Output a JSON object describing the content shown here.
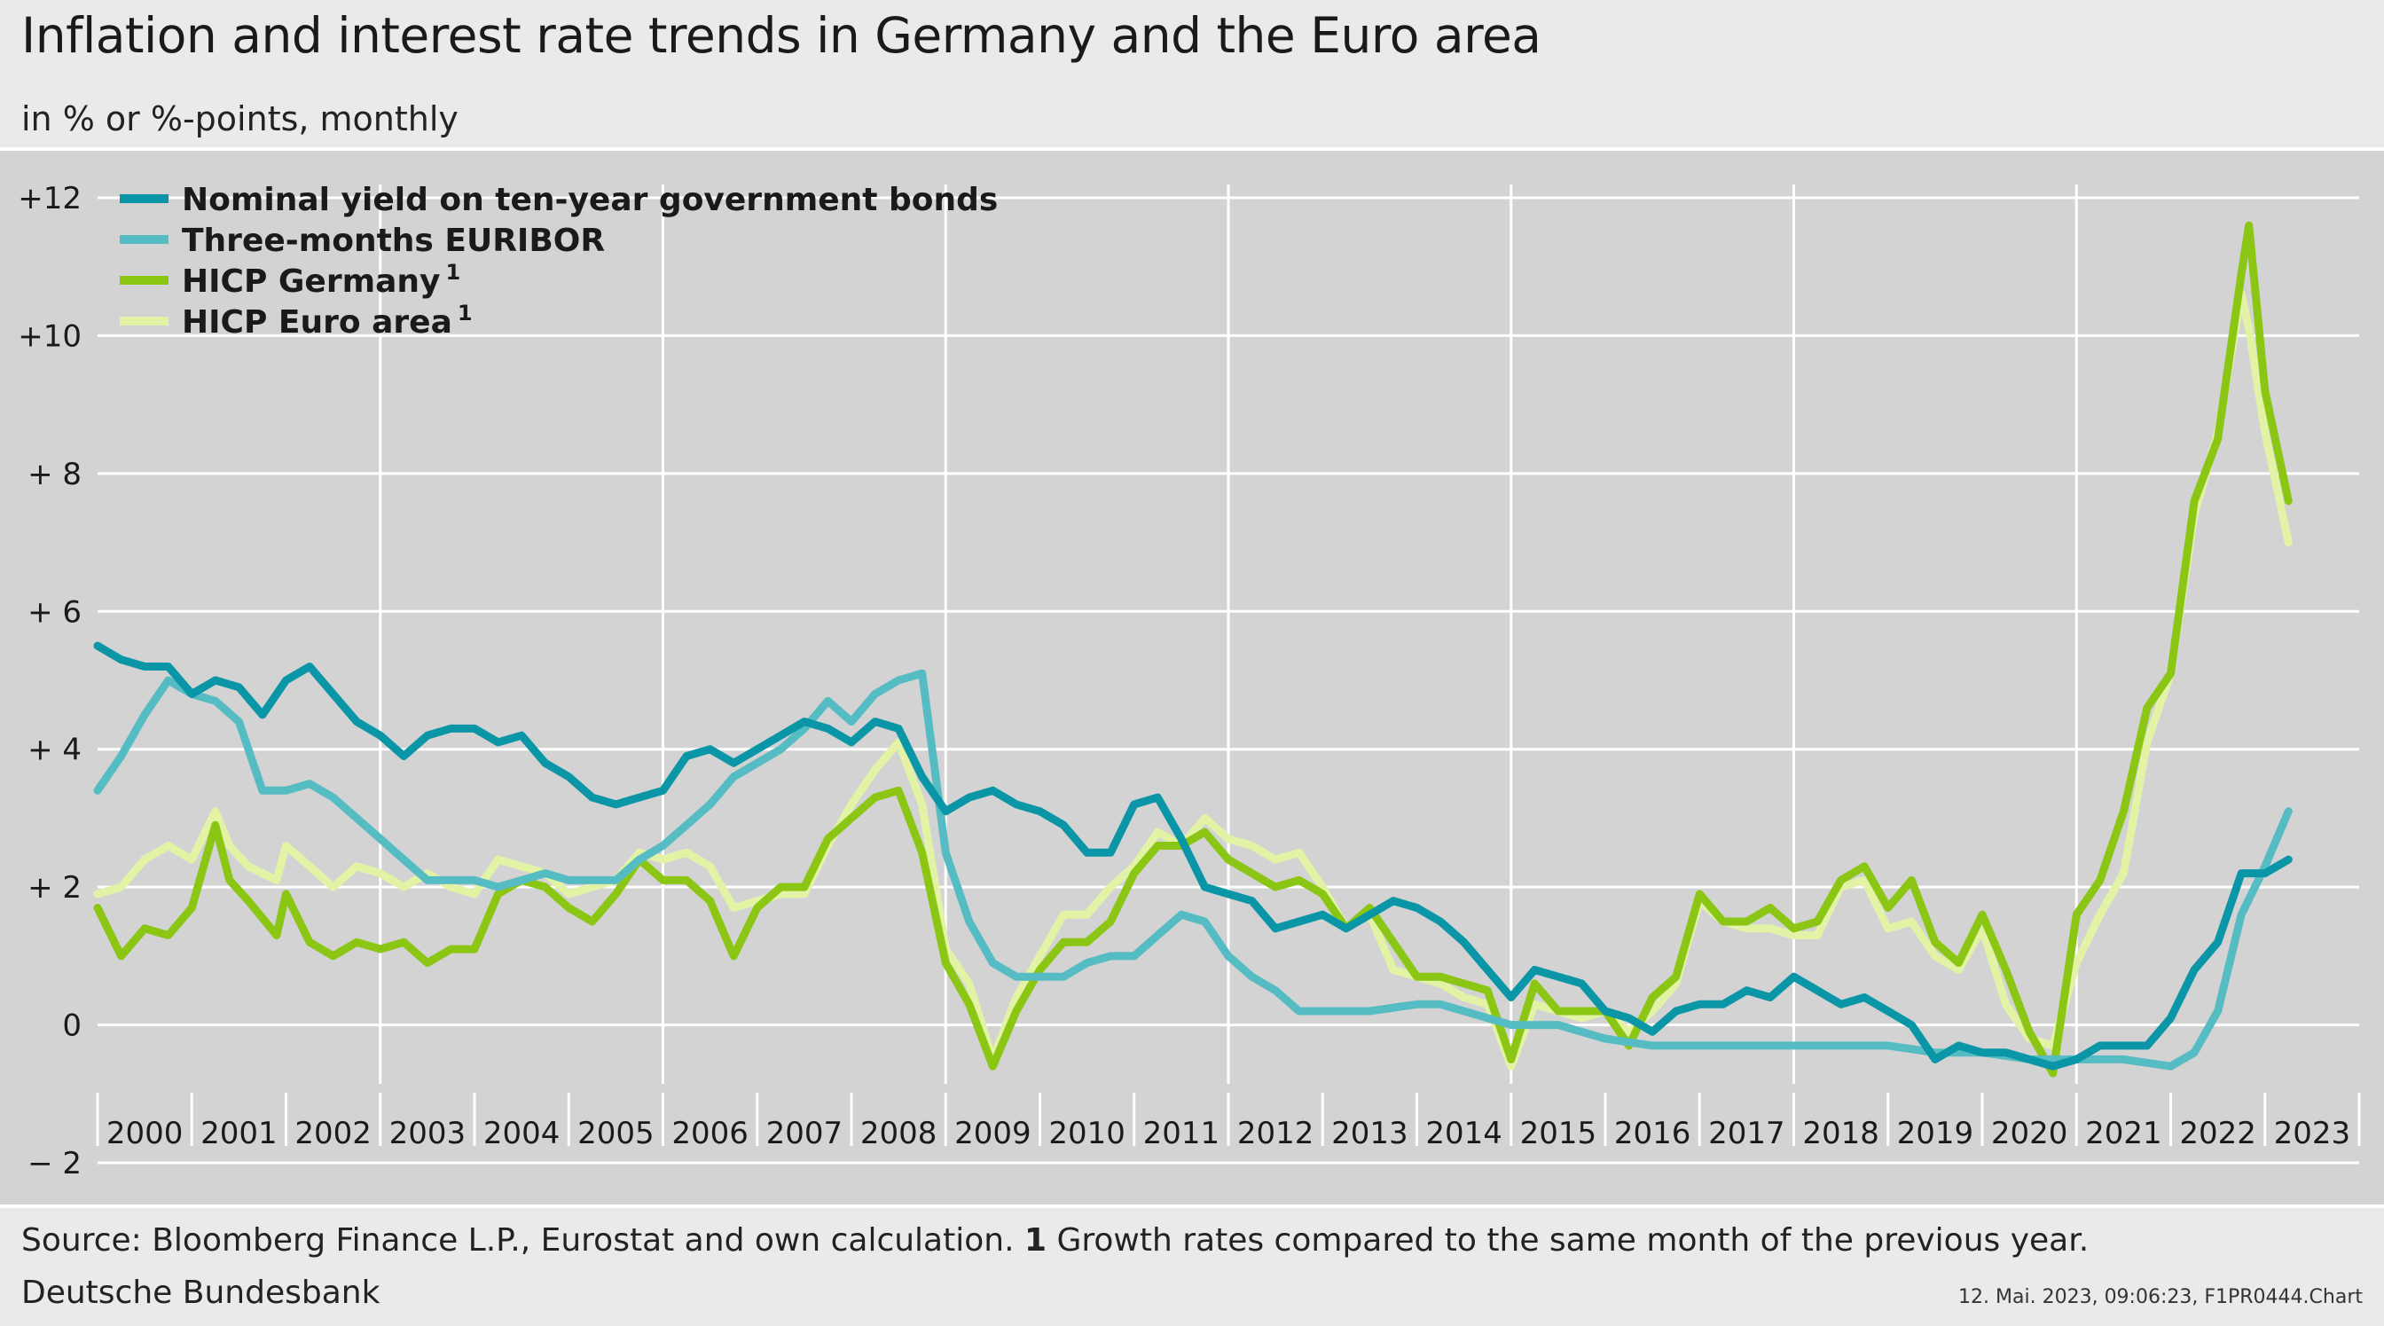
{
  "title": "Inflation and interest rate trends in Germany and the Euro area",
  "subtitle": "in % or %-points, monthly",
  "source": {
    "text": "Source: Bloomberg Finance L.P., Eurostat and own calculation.",
    "footnote_marker": "1",
    "footnote_text": "Growth rates compared to the same month of the previous year."
  },
  "publisher": "Deutsche Bundesbank",
  "timestamp": "12. Mai. 2023, 09:06:23, F1PR0444.Chart",
  "colors": {
    "nominal_yield": "#0a96a7",
    "euribor": "#56bcc3",
    "hicp_germany": "#8cc614",
    "hicp_euro": "#e2f3a6",
    "grid": "#ffffff",
    "plot_bg": "#d3d3d3"
  },
  "chart_data": {
    "type": "line",
    "title": "Inflation and interest rate trends in Germany and the Euro area",
    "subtitle": "in % or %-points, monthly",
    "xlabel": "",
    "ylabel": "",
    "ylim": [
      -2,
      12
    ],
    "xlim": [
      2000,
      2024
    ],
    "grid": true,
    "legend_position": "top-left",
    "y_ticks": [
      {
        "value": 12,
        "label": "+12"
      },
      {
        "value": 10,
        "label": "+10"
      },
      {
        "value": 8,
        "label": "+ 8"
      },
      {
        "value": 6,
        "label": "+ 6"
      },
      {
        "value": 4,
        "label": "+ 4"
      },
      {
        "value": 2,
        "label": "+ 2"
      },
      {
        "value": 0,
        "label": "0"
      },
      {
        "value": -2,
        "label": "− 2"
      }
    ],
    "x_ticks": [
      "2000",
      "2001",
      "2002",
      "2003",
      "2004",
      "2005",
      "2006",
      "2007",
      "2008",
      "2009",
      "2010",
      "2011",
      "2012",
      "2013",
      "2014",
      "2015",
      "2016",
      "2017",
      "2018",
      "2019",
      "2020",
      "2021",
      "2022",
      "2023"
    ],
    "series": [
      {
        "name": "HICP Euro area",
        "footnote": "1",
        "color_key": "hicp_euro",
        "x": [
          2000.0,
          2000.25,
          2000.5,
          2000.75,
          2001.0,
          2001.25,
          2001.4,
          2001.6,
          2001.9,
          2002.0,
          2002.25,
          2002.5,
          2002.75,
          2003.0,
          2003.25,
          2003.5,
          2003.75,
          2004.0,
          2004.25,
          2004.5,
          2004.75,
          2005.0,
          2005.25,
          2005.5,
          2005.75,
          2006.0,
          2006.25,
          2006.5,
          2006.75,
          2007.0,
          2007.25,
          2007.5,
          2007.75,
          2008.0,
          2008.25,
          2008.5,
          2008.75,
          2009.0,
          2009.25,
          2009.5,
          2009.75,
          2010.0,
          2010.25,
          2010.5,
          2010.75,
          2011.0,
          2011.25,
          2011.5,
          2011.75,
          2012.0,
          2012.25,
          2012.5,
          2012.75,
          2013.0,
          2013.25,
          2013.5,
          2013.75,
          2014.0,
          2014.25,
          2014.5,
          2014.75,
          2015.0,
          2015.25,
          2015.5,
          2015.75,
          2016.0,
          2016.25,
          2016.5,
          2016.75,
          2017.0,
          2017.25,
          2017.5,
          2017.75,
          2018.0,
          2018.25,
          2018.5,
          2018.75,
          2019.0,
          2019.25,
          2019.5,
          2019.75,
          2020.0,
          2020.25,
          2020.5,
          2020.75,
          2021.0,
          2021.25,
          2021.5,
          2021.75,
          2022.0,
          2022.25,
          2022.5,
          2022.75,
          2022.83,
          2023.0,
          2023.25
        ],
        "values": [
          1.9,
          2.0,
          2.4,
          2.6,
          2.4,
          3.1,
          2.6,
          2.3,
          2.1,
          2.6,
          2.3,
          2.0,
          2.3,
          2.2,
          2.0,
          2.2,
          2.0,
          1.9,
          2.4,
          2.3,
          2.2,
          1.9,
          2.0,
          2.1,
          2.5,
          2.4,
          2.5,
          2.3,
          1.7,
          1.8,
          1.9,
          1.9,
          2.6,
          3.2,
          3.7,
          4.1,
          3.2,
          1.1,
          0.6,
          -0.5,
          0.4,
          1.0,
          1.6,
          1.6,
          2.0,
          2.3,
          2.8,
          2.6,
          3.0,
          2.7,
          2.6,
          2.4,
          2.5,
          2.0,
          1.4,
          1.6,
          0.8,
          0.7,
          0.6,
          0.4,
          0.3,
          -0.6,
          0.3,
          0.2,
          0.1,
          0.2,
          -0.1,
          0.2,
          0.6,
          1.8,
          1.5,
          1.4,
          1.4,
          1.3,
          1.3,
          2.0,
          2.1,
          1.4,
          1.5,
          1.0,
          0.8,
          1.4,
          0.3,
          -0.2,
          -0.3,
          0.9,
          1.6,
          2.2,
          4.1,
          5.1,
          7.4,
          8.6,
          10.6,
          10.1,
          8.6,
          7.0
        ]
      },
      {
        "name": "HICP Germany",
        "footnote": "1",
        "color_key": "hicp_germany",
        "x": [
          2000.0,
          2000.25,
          2000.5,
          2000.75,
          2001.0,
          2001.25,
          2001.4,
          2001.6,
          2001.9,
          2002.0,
          2002.25,
          2002.5,
          2002.75,
          2003.0,
          2003.25,
          2003.5,
          2003.75,
          2004.0,
          2004.25,
          2004.5,
          2004.75,
          2005.0,
          2005.25,
          2005.5,
          2005.75,
          2006.0,
          2006.25,
          2006.5,
          2006.75,
          2007.0,
          2007.25,
          2007.5,
          2007.75,
          2008.0,
          2008.25,
          2008.5,
          2008.75,
          2009.0,
          2009.25,
          2009.5,
          2009.75,
          2010.0,
          2010.25,
          2010.5,
          2010.75,
          2011.0,
          2011.25,
          2011.5,
          2011.75,
          2012.0,
          2012.25,
          2012.5,
          2012.75,
          2013.0,
          2013.25,
          2013.5,
          2013.75,
          2014.0,
          2014.25,
          2014.5,
          2014.75,
          2015.0,
          2015.25,
          2015.5,
          2015.75,
          2016.0,
          2016.25,
          2016.5,
          2016.75,
          2017.0,
          2017.25,
          2017.5,
          2017.75,
          2018.0,
          2018.25,
          2018.5,
          2018.75,
          2019.0,
          2019.25,
          2019.5,
          2019.75,
          2020.0,
          2020.25,
          2020.5,
          2020.75,
          2021.0,
          2021.25,
          2021.5,
          2021.75,
          2022.0,
          2022.25,
          2022.5,
          2022.75,
          2022.83,
          2023.0,
          2023.25
        ],
        "values": [
          1.7,
          1.0,
          1.4,
          1.3,
          1.7,
          2.9,
          2.1,
          1.8,
          1.3,
          1.9,
          1.2,
          1.0,
          1.2,
          1.1,
          1.2,
          0.9,
          1.1,
          1.1,
          1.9,
          2.1,
          2.0,
          1.7,
          1.5,
          1.9,
          2.4,
          2.1,
          2.1,
          1.8,
          1.0,
          1.7,
          2.0,
          2.0,
          2.7,
          3.0,
          3.3,
          3.4,
          2.5,
          0.9,
          0.3,
          -0.6,
          0.2,
          0.8,
          1.2,
          1.2,
          1.5,
          2.2,
          2.6,
          2.6,
          2.8,
          2.4,
          2.2,
          2.0,
          2.1,
          1.9,
          1.4,
          1.7,
          1.2,
          0.7,
          0.7,
          0.6,
          0.5,
          -0.5,
          0.6,
          0.2,
          0.2,
          0.2,
          -0.3,
          0.4,
          0.7,
          1.9,
          1.5,
          1.5,
          1.7,
          1.4,
          1.5,
          2.1,
          2.3,
          1.7,
          2.1,
          1.2,
          0.9,
          1.6,
          0.8,
          -0.1,
          -0.7,
          1.6,
          2.1,
          3.1,
          4.6,
          5.1,
          7.6,
          8.5,
          10.9,
          11.6,
          9.2,
          7.6
        ]
      },
      {
        "name": "Three-months EURIBOR",
        "color_key": "euribor",
        "x": [
          2000.0,
          2000.25,
          2000.5,
          2000.75,
          2001.0,
          2001.25,
          2001.5,
          2001.75,
          2002.0,
          2002.25,
          2002.5,
          2002.75,
          2003.0,
          2003.25,
          2003.5,
          2003.75,
          2004.0,
          2004.25,
          2004.5,
          2004.75,
          2005.0,
          2005.25,
          2005.5,
          2005.75,
          2006.0,
          2006.25,
          2006.5,
          2006.75,
          2007.0,
          2007.25,
          2007.5,
          2007.75,
          2008.0,
          2008.25,
          2008.5,
          2008.75,
          2009.0,
          2009.25,
          2009.5,
          2009.75,
          2010.0,
          2010.25,
          2010.5,
          2010.75,
          2011.0,
          2011.25,
          2011.5,
          2011.75,
          2012.0,
          2012.25,
          2012.5,
          2012.75,
          2013.0,
          2013.5,
          2014.0,
          2014.25,
          2014.5,
          2014.75,
          2015.0,
          2015.5,
          2016.0,
          2016.5,
          2017.0,
          2018.0,
          2019.0,
          2019.5,
          2020.0,
          2020.5,
          2021.0,
          2021.5,
          2022.0,
          2022.25,
          2022.5,
          2022.75,
          2023.0,
          2023.25
        ],
        "values": [
          3.4,
          3.9,
          4.5,
          5.0,
          4.8,
          4.7,
          4.4,
          3.4,
          3.4,
          3.5,
          3.3,
          3.0,
          2.7,
          2.4,
          2.1,
          2.1,
          2.1,
          2.0,
          2.1,
          2.2,
          2.1,
          2.1,
          2.1,
          2.4,
          2.6,
          2.9,
          3.2,
          3.6,
          3.8,
          4.0,
          4.3,
          4.7,
          4.4,
          4.8,
          5.0,
          5.1,
          2.5,
          1.5,
          0.9,
          0.7,
          0.7,
          0.7,
          0.9,
          1.0,
          1.0,
          1.3,
          1.6,
          1.5,
          1.0,
          0.7,
          0.5,
          0.2,
          0.2,
          0.2,
          0.3,
          0.3,
          0.2,
          0.1,
          0.0,
          0.0,
          -0.2,
          -0.3,
          -0.3,
          -0.3,
          -0.3,
          -0.4,
          -0.4,
          -0.5,
          -0.5,
          -0.5,
          -0.6,
          -0.4,
          0.2,
          1.6,
          2.3,
          3.1
        ]
      },
      {
        "name": "Nominal yield on ten-year government bonds",
        "color_key": "nominal_yield",
        "x": [
          2000.0,
          2000.25,
          2000.5,
          2000.75,
          2001.0,
          2001.25,
          2001.5,
          2001.75,
          2002.0,
          2002.25,
          2002.5,
          2002.75,
          2003.0,
          2003.25,
          2003.5,
          2003.75,
          2004.0,
          2004.25,
          2004.5,
          2004.75,
          2005.0,
          2005.25,
          2005.5,
          2005.75,
          2006.0,
          2006.25,
          2006.5,
          2006.75,
          2007.0,
          2007.25,
          2007.5,
          2007.75,
          2008.0,
          2008.25,
          2008.5,
          2008.75,
          2009.0,
          2009.25,
          2009.5,
          2009.75,
          2010.0,
          2010.25,
          2010.5,
          2010.75,
          2011.0,
          2011.25,
          2011.5,
          2011.75,
          2012.0,
          2012.25,
          2012.5,
          2012.75,
          2013.0,
          2013.25,
          2013.5,
          2013.75,
          2014.0,
          2014.25,
          2014.5,
          2014.75,
          2015.0,
          2015.25,
          2015.5,
          2015.75,
          2016.0,
          2016.25,
          2016.5,
          2016.75,
          2017.0,
          2017.25,
          2017.5,
          2017.75,
          2018.0,
          2018.25,
          2018.5,
          2018.75,
          2019.0,
          2019.25,
          2019.5,
          2019.75,
          2020.0,
          2020.25,
          2020.5,
          2020.75,
          2021.0,
          2021.25,
          2021.5,
          2021.75,
          2022.0,
          2022.25,
          2022.5,
          2022.75,
          2023.0,
          2023.25
        ],
        "values": [
          5.5,
          5.3,
          5.2,
          5.2,
          4.8,
          5.0,
          4.9,
          4.5,
          5.0,
          5.2,
          4.8,
          4.4,
          4.2,
          3.9,
          4.2,
          4.3,
          4.3,
          4.1,
          4.2,
          3.8,
          3.6,
          3.3,
          3.2,
          3.3,
          3.4,
          3.9,
          4.0,
          3.8,
          4.0,
          4.2,
          4.4,
          4.3,
          4.1,
          4.4,
          4.3,
          3.6,
          3.1,
          3.3,
          3.4,
          3.2,
          3.1,
          2.9,
          2.5,
          2.5,
          3.2,
          3.3,
          2.7,
          2.0,
          1.9,
          1.8,
          1.4,
          1.5,
          1.6,
          1.4,
          1.6,
          1.8,
          1.7,
          1.5,
          1.2,
          0.8,
          0.4,
          0.8,
          0.7,
          0.6,
          0.2,
          0.1,
          -0.1,
          0.2,
          0.3,
          0.3,
          0.5,
          0.4,
          0.7,
          0.5,
          0.3,
          0.4,
          0.2,
          0.0,
          -0.5,
          -0.3,
          -0.4,
          -0.4,
          -0.5,
          -0.6,
          -0.5,
          -0.3,
          -0.3,
          -0.3,
          0.1,
          0.8,
          1.2,
          2.2,
          2.2,
          2.4
        ]
      }
    ],
    "legend_order": [
      "Nominal yield on ten-year government bonds",
      "Three-months EURIBOR",
      "HICP Germany",
      "HICP Euro area"
    ]
  }
}
